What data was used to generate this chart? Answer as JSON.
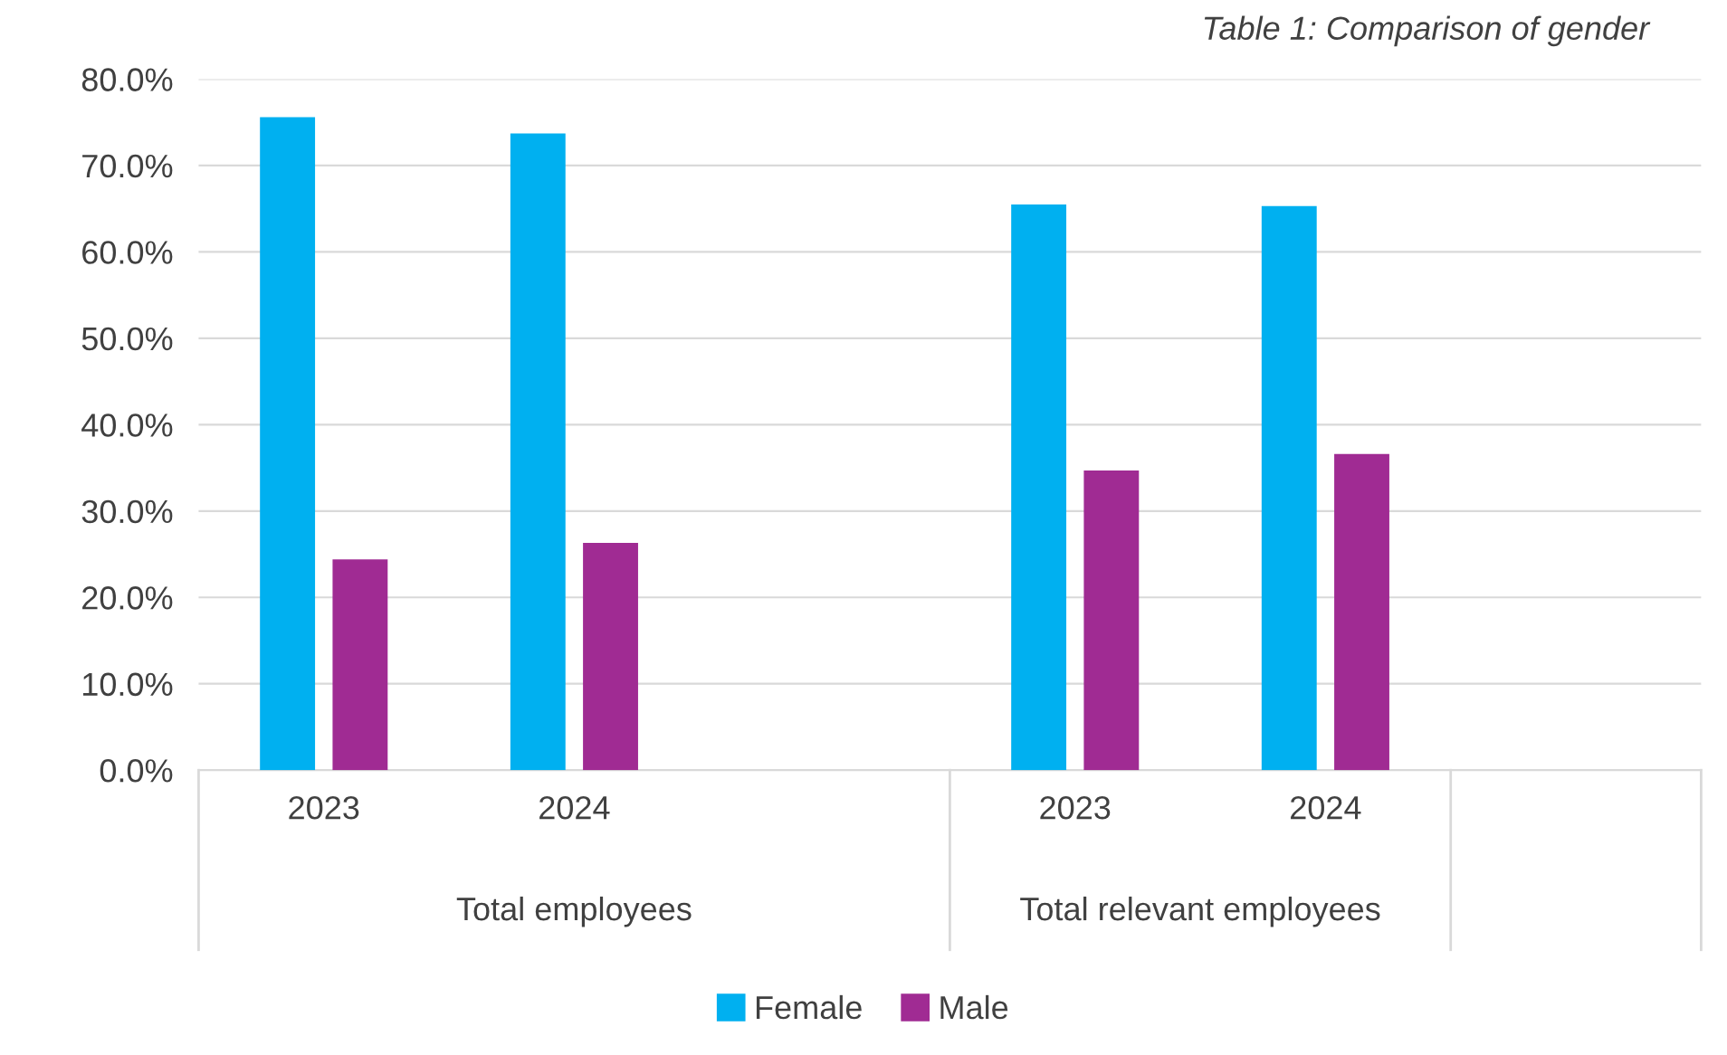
{
  "chart_data": {
    "type": "bar",
    "title": "Table 1: Comparison of gender",
    "categories": [
      "2023",
      "2024",
      null,
      "2023",
      "2024",
      null
    ],
    "series": [
      {
        "name": "Female",
        "color": "#00b0f0",
        "values": [
          75.6,
          73.7,
          null,
          65.5,
          65.3,
          null
        ]
      },
      {
        "name": "Male",
        "color": "#a02b93",
        "values": [
          24.4,
          26.3,
          null,
          34.7,
          36.6,
          null
        ]
      }
    ],
    "annotations": [
      "Total employees",
      "Total relevant employees"
    ],
    "ylim": [
      0,
      80
    ],
    "yticks": [
      {
        "value": 0,
        "label": "0.0%"
      },
      {
        "value": 10,
        "label": "10.0%"
      },
      {
        "value": 20,
        "label": "20.0%"
      },
      {
        "value": 30,
        "label": "30.0%"
      },
      {
        "value": 40,
        "label": "40.0%"
      },
      {
        "value": 50,
        "label": "50.0%"
      },
      {
        "value": 60,
        "label": "60.0%"
      },
      {
        "value": 70,
        "label": "70.0%"
      },
      {
        "value": 80,
        "label": "80.0%"
      }
    ],
    "grid": "y",
    "legend": "bottom"
  }
}
